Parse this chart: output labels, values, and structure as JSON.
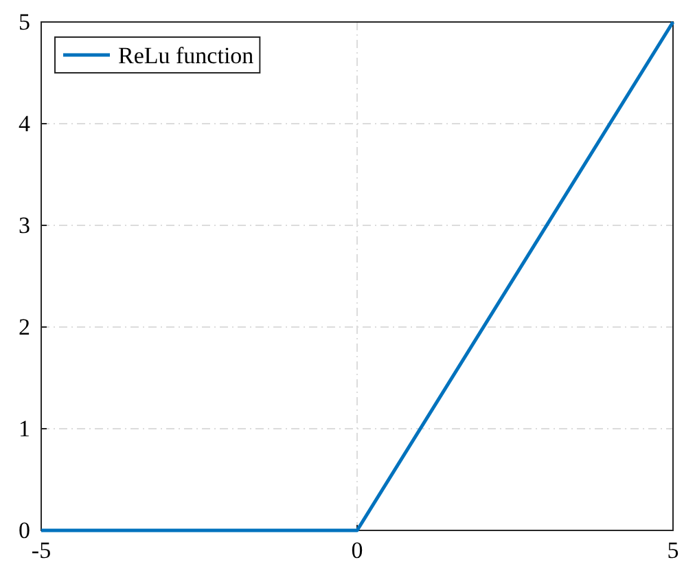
{
  "chart_data": {
    "type": "line",
    "x": [
      -5,
      0,
      5
    ],
    "series": [
      {
        "name": "ReLu function",
        "color": "#0072bd",
        "values": [
          0,
          0,
          5
        ]
      }
    ],
    "xlim": [
      -5,
      5
    ],
    "xticks": [
      -5,
      0,
      5
    ],
    "ylim": [
      0,
      5
    ],
    "yticks": [
      0,
      1,
      2,
      3,
      4,
      5
    ],
    "grid": true,
    "legend": "top left",
    "line_style": "solid",
    "marker": "none"
  }
}
